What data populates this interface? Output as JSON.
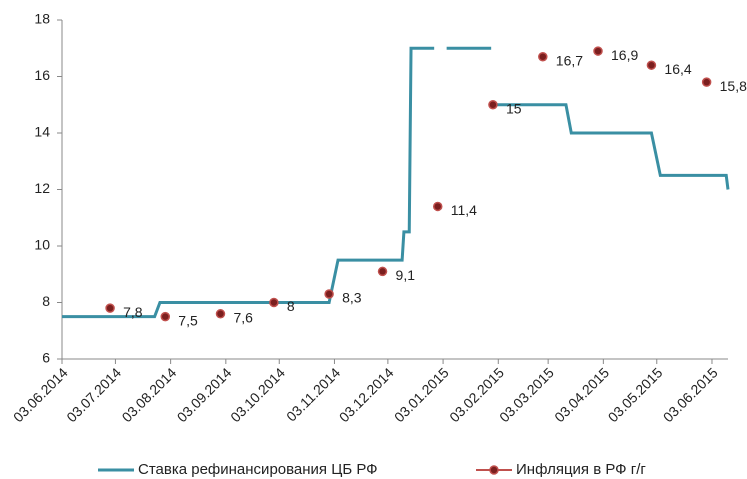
{
  "chart_data": {
    "type": "line",
    "xlim": [
      "03.06.2014",
      "12.06.2015"
    ],
    "xticks": [
      "03.06.2014",
      "03.07.2014",
      "03.08.2014",
      "03.09.2014",
      "03.10.2014",
      "03.11.2014",
      "03.12.2014",
      "03.01.2015",
      "03.02.2015",
      "03.03.2015",
      "03.04.2015",
      "03.05.2015",
      "03.06.2015"
    ],
    "ylim": [
      6,
      18
    ],
    "yticks": [
      6,
      8,
      10,
      12,
      14,
      16,
      18
    ],
    "legend": "bottom",
    "series": [
      {
        "name": "Ставка рефинансирования ЦБ РФ",
        "color": "#3a8fa3",
        "line": true,
        "marker": false,
        "x": [
          "03.06.2014",
          "25.07.2014",
          "28.07.2014",
          "31.10.2014",
          "05.11.2014",
          "11.12.2014",
          "12.12.2014",
          "15.12.2014",
          "16.12.2014",
          "29.12.2014",
          null,
          "05.01.2015",
          "30.01.2015",
          null,
          "02.02.2015",
          "13.03.2015",
          "16.03.2015",
          "30.04.2015",
          "05.05.2015",
          "11.06.2015",
          "12.06.2015"
        ],
        "values": [
          7.5,
          7.5,
          8,
          8,
          9.5,
          9.5,
          10.5,
          10.5,
          17,
          17,
          null,
          17,
          17,
          null,
          15,
          15,
          14,
          14,
          12.5,
          12.5,
          12
        ]
      },
      {
        "name": "Инфляция в РФ г/г",
        "color": "#7b1f1f",
        "line": false,
        "marker": true,
        "x": [
          "30.06.2014",
          "31.07.2014",
          "31.08.2014",
          "30.09.2014",
          "31.10.2014",
          "30.11.2014",
          "31.12.2014",
          "31.01.2015",
          "28.02.2015",
          "31.03.2015",
          "30.04.2015",
          "31.05.2015"
        ],
        "values": [
          7.8,
          7.5,
          7.6,
          8,
          8.3,
          9.1,
          11.4,
          15,
          16.7,
          16.9,
          16.4,
          15.8
        ],
        "value_labels": [
          "7,8",
          "7,5",
          "7,6",
          "8",
          "8,3",
          "9,1",
          "11,4",
          "15",
          "16,7",
          "16,9",
          "16,4",
          "15,8"
        ]
      }
    ]
  }
}
